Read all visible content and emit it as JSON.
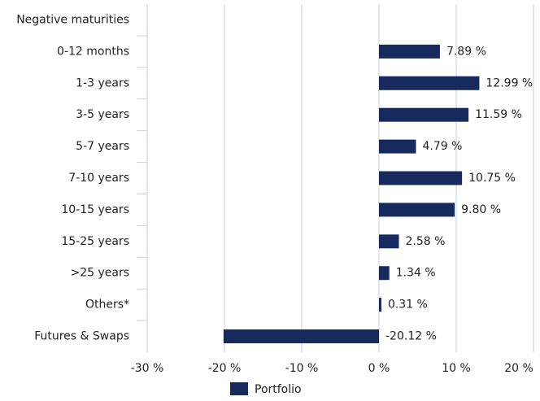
{
  "chart_data": {
    "type": "bar",
    "orientation": "horizontal",
    "categories": [
      "Negative maturities",
      "0-12 months",
      "1-3 years",
      "3-5 years",
      "5-7 years",
      "7-10 years",
      "10-15 years",
      "15-25 years",
      ">25 years",
      "Others*",
      "Futures & Swaps"
    ],
    "series": [
      {
        "name": "Portfolio",
        "color": "#172a5e",
        "values": [
          null,
          7.89,
          12.99,
          11.59,
          4.79,
          10.75,
          9.8,
          2.58,
          1.34,
          0.31,
          -20.12
        ],
        "value_labels": [
          null,
          "7.89 %",
          "12.99 %",
          "11.59 %",
          "4.79 %",
          "10.75 %",
          "9.80 %",
          "2.58 %",
          "1.34 %",
          "0.31 %",
          "-20.12 %"
        ]
      }
    ],
    "xlim": [
      -30,
      20
    ],
    "xticks": [
      {
        "value": -30,
        "label": "-30 %"
      },
      {
        "value": -20,
        "label": "-20 %"
      },
      {
        "value": -10,
        "label": "-10 %"
      },
      {
        "value": 0,
        "label": "0 %"
      },
      {
        "value": 10,
        "label": "10 %"
      },
      {
        "value": 20,
        "label": "20 %"
      }
    ],
    "grid": true,
    "legend": "bottom"
  }
}
